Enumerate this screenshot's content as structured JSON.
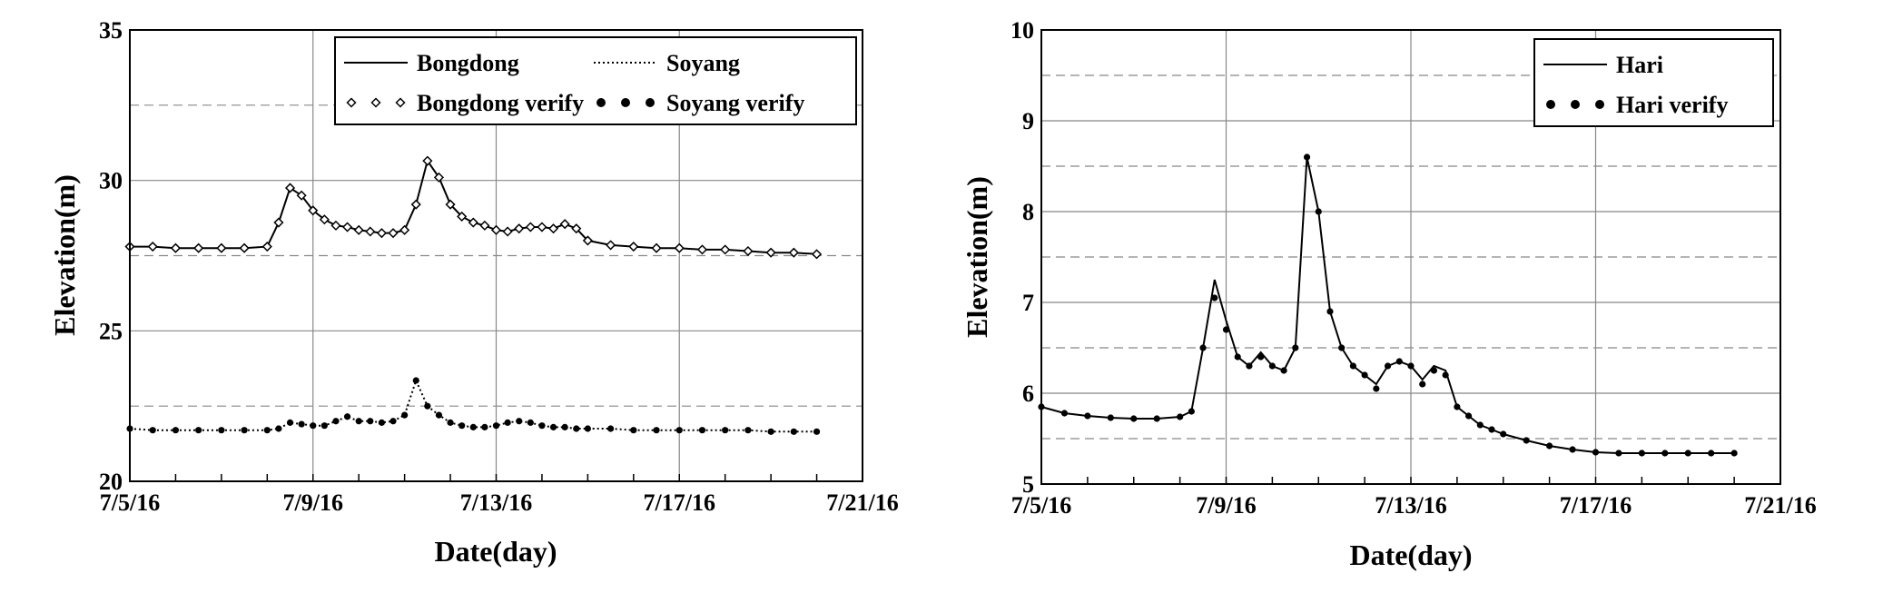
{
  "chart_data": [
    {
      "type": "line",
      "xlabel": "Date(day)",
      "ylabel": "Elevation(m)",
      "x_ticks": [
        "7/5/16",
        "7/9/16",
        "7/13/16",
        "7/17/16",
        "7/21/16"
      ],
      "y_ticks": [
        "20",
        "25",
        "30",
        "35"
      ],
      "xlim": [
        "2016-07-05",
        "2016-07-21"
      ],
      "ylim": [
        20,
        35
      ],
      "grid": "solid lines at labeled ticks, dashed lines at half-steps",
      "legend_position": "top-right",
      "x": [
        "2016-07-05 00:00",
        "2016-07-05 12:00",
        "2016-07-06 00:00",
        "2016-07-06 12:00",
        "2016-07-07 00:00",
        "2016-07-07 12:00",
        "2016-07-08 00:00",
        "2016-07-08 06:00",
        "2016-07-08 12:00",
        "2016-07-08 18:00",
        "2016-07-09 00:00",
        "2016-07-09 06:00",
        "2016-07-09 12:00",
        "2016-07-09 18:00",
        "2016-07-10 00:00",
        "2016-07-10 06:00",
        "2016-07-10 12:00",
        "2016-07-10 18:00",
        "2016-07-11 00:00",
        "2016-07-11 06:00",
        "2016-07-11 12:00",
        "2016-07-11 18:00",
        "2016-07-12 00:00",
        "2016-07-12 06:00",
        "2016-07-12 12:00",
        "2016-07-12 18:00",
        "2016-07-13 00:00",
        "2016-07-13 06:00",
        "2016-07-13 12:00",
        "2016-07-13 18:00",
        "2016-07-14 00:00",
        "2016-07-14 06:00",
        "2016-07-14 12:00",
        "2016-07-14 18:00",
        "2016-07-15 00:00",
        "2016-07-15 12:00",
        "2016-07-16 00:00",
        "2016-07-16 12:00",
        "2016-07-17 00:00",
        "2016-07-17 12:00",
        "2016-07-18 00:00",
        "2016-07-18 12:00",
        "2016-07-19 00:00",
        "2016-07-19 12:00",
        "2016-07-20 00:00"
      ],
      "series": [
        {
          "name": "Bongdong",
          "style": "solid",
          "values": [
            27.8,
            27.8,
            27.75,
            27.75,
            27.75,
            27.75,
            27.8,
            28.6,
            29.75,
            29.5,
            29.0,
            28.7,
            28.5,
            28.45,
            28.35,
            28.3,
            28.25,
            28.25,
            28.35,
            29.2,
            30.65,
            30.1,
            29.2,
            28.8,
            28.6,
            28.5,
            28.35,
            28.3,
            28.4,
            28.45,
            28.45,
            28.4,
            28.55,
            28.4,
            28.0,
            27.85,
            27.8,
            27.75,
            27.75,
            27.7,
            27.7,
            27.65,
            27.6,
            27.6,
            27.55
          ]
        },
        {
          "name": "Bongdong verify",
          "style": "hollow-diamond-markers",
          "values": [
            27.8,
            27.8,
            27.75,
            27.75,
            27.75,
            27.75,
            27.8,
            28.6,
            29.75,
            29.5,
            29.0,
            28.7,
            28.5,
            28.45,
            28.35,
            28.3,
            28.25,
            28.25,
            28.35,
            29.2,
            30.65,
            30.1,
            29.2,
            28.8,
            28.6,
            28.5,
            28.35,
            28.3,
            28.4,
            28.45,
            28.45,
            28.4,
            28.55,
            28.4,
            28.0,
            27.85,
            27.8,
            27.75,
            27.75,
            27.7,
            27.7,
            27.65,
            27.6,
            27.6,
            27.55
          ]
        },
        {
          "name": "Soyang",
          "style": "dotted",
          "values": [
            21.75,
            21.7,
            21.7,
            21.7,
            21.7,
            21.7,
            21.7,
            21.75,
            21.95,
            21.9,
            21.85,
            21.85,
            22.0,
            22.15,
            22.0,
            22.0,
            21.95,
            22.0,
            22.2,
            23.35,
            22.5,
            22.2,
            21.95,
            21.85,
            21.8,
            21.8,
            21.85,
            21.95,
            22.0,
            21.95,
            21.85,
            21.8,
            21.8,
            21.75,
            21.75,
            21.75,
            21.7,
            21.7,
            21.7,
            21.7,
            21.7,
            21.7,
            21.65,
            21.65,
            21.65
          ]
        },
        {
          "name": "Soyang verify",
          "style": "filled-dot-markers",
          "values": [
            21.75,
            21.7,
            21.7,
            21.7,
            21.7,
            21.7,
            21.7,
            21.75,
            21.95,
            21.9,
            21.85,
            21.85,
            22.0,
            22.15,
            22.0,
            22.0,
            21.95,
            22.0,
            22.2,
            23.35,
            22.5,
            22.2,
            21.95,
            21.85,
            21.8,
            21.8,
            21.85,
            21.95,
            22.0,
            21.95,
            21.85,
            21.8,
            21.8,
            21.75,
            21.75,
            21.75,
            21.7,
            21.7,
            21.7,
            21.7,
            21.7,
            21.7,
            21.65,
            21.65,
            21.65
          ]
        }
      ]
    },
    {
      "type": "line",
      "xlabel": "Date(day)",
      "ylabel": "Elevation(m)",
      "x_ticks": [
        "7/5/16",
        "7/9/16",
        "7/13/16",
        "7/17/16",
        "7/21/16"
      ],
      "y_ticks": [
        "5",
        "6",
        "7",
        "8",
        "9",
        "10"
      ],
      "xlim": [
        "2016-07-05",
        "2016-07-21"
      ],
      "ylim": [
        5,
        10
      ],
      "grid": "solid lines at labeled ticks, dashed lines at half-steps",
      "legend_position": "top-right",
      "x": [
        "2016-07-05 00:00",
        "2016-07-05 12:00",
        "2016-07-06 00:00",
        "2016-07-06 12:00",
        "2016-07-07 00:00",
        "2016-07-07 12:00",
        "2016-07-08 00:00",
        "2016-07-08 06:00",
        "2016-07-08 12:00",
        "2016-07-08 18:00",
        "2016-07-09 00:00",
        "2016-07-09 06:00",
        "2016-07-09 12:00",
        "2016-07-09 18:00",
        "2016-07-10 00:00",
        "2016-07-10 06:00",
        "2016-07-10 12:00",
        "2016-07-10 18:00",
        "2016-07-11 00:00",
        "2016-07-11 06:00",
        "2016-07-11 12:00",
        "2016-07-11 18:00",
        "2016-07-12 00:00",
        "2016-07-12 06:00",
        "2016-07-12 12:00",
        "2016-07-12 18:00",
        "2016-07-13 00:00",
        "2016-07-13 06:00",
        "2016-07-13 12:00",
        "2016-07-13 18:00",
        "2016-07-14 00:00",
        "2016-07-14 06:00",
        "2016-07-14 12:00",
        "2016-07-14 18:00",
        "2016-07-15 00:00",
        "2016-07-15 12:00",
        "2016-07-16 00:00",
        "2016-07-16 12:00",
        "2016-07-17 00:00",
        "2016-07-17 12:00",
        "2016-07-18 00:00",
        "2016-07-18 12:00",
        "2016-07-19 00:00",
        "2016-07-19 12:00",
        "2016-07-20 00:00"
      ],
      "series": [
        {
          "name": "Hari",
          "style": "solid",
          "values": [
            5.85,
            5.78,
            5.75,
            5.73,
            5.72,
            5.72,
            5.74,
            5.8,
            6.5,
            7.25,
            6.8,
            6.4,
            6.3,
            6.45,
            6.3,
            6.25,
            6.5,
            8.6,
            8.0,
            6.9,
            6.5,
            6.3,
            6.2,
            6.1,
            6.3,
            6.35,
            6.3,
            6.15,
            6.3,
            6.25,
            5.85,
            5.75,
            5.65,
            5.6,
            5.55,
            5.48,
            5.42,
            5.38,
            5.35,
            5.34,
            5.34,
            5.34,
            5.34,
            5.34,
            5.34
          ]
        },
        {
          "name": "Hari verify",
          "style": "filled-dot-markers",
          "values": [
            5.85,
            5.78,
            5.75,
            5.73,
            5.72,
            5.72,
            5.74,
            5.8,
            6.5,
            7.05,
            6.7,
            6.4,
            6.3,
            6.4,
            6.3,
            6.25,
            6.5,
            8.6,
            8.0,
            6.9,
            6.5,
            6.3,
            6.2,
            6.05,
            6.3,
            6.35,
            6.3,
            6.1,
            6.25,
            6.2,
            5.85,
            5.75,
            5.65,
            5.6,
            5.55,
            5.48,
            5.42,
            5.38,
            5.35,
            5.34,
            5.34,
            5.34,
            5.34,
            5.34,
            5.34
          ]
        }
      ]
    }
  ]
}
